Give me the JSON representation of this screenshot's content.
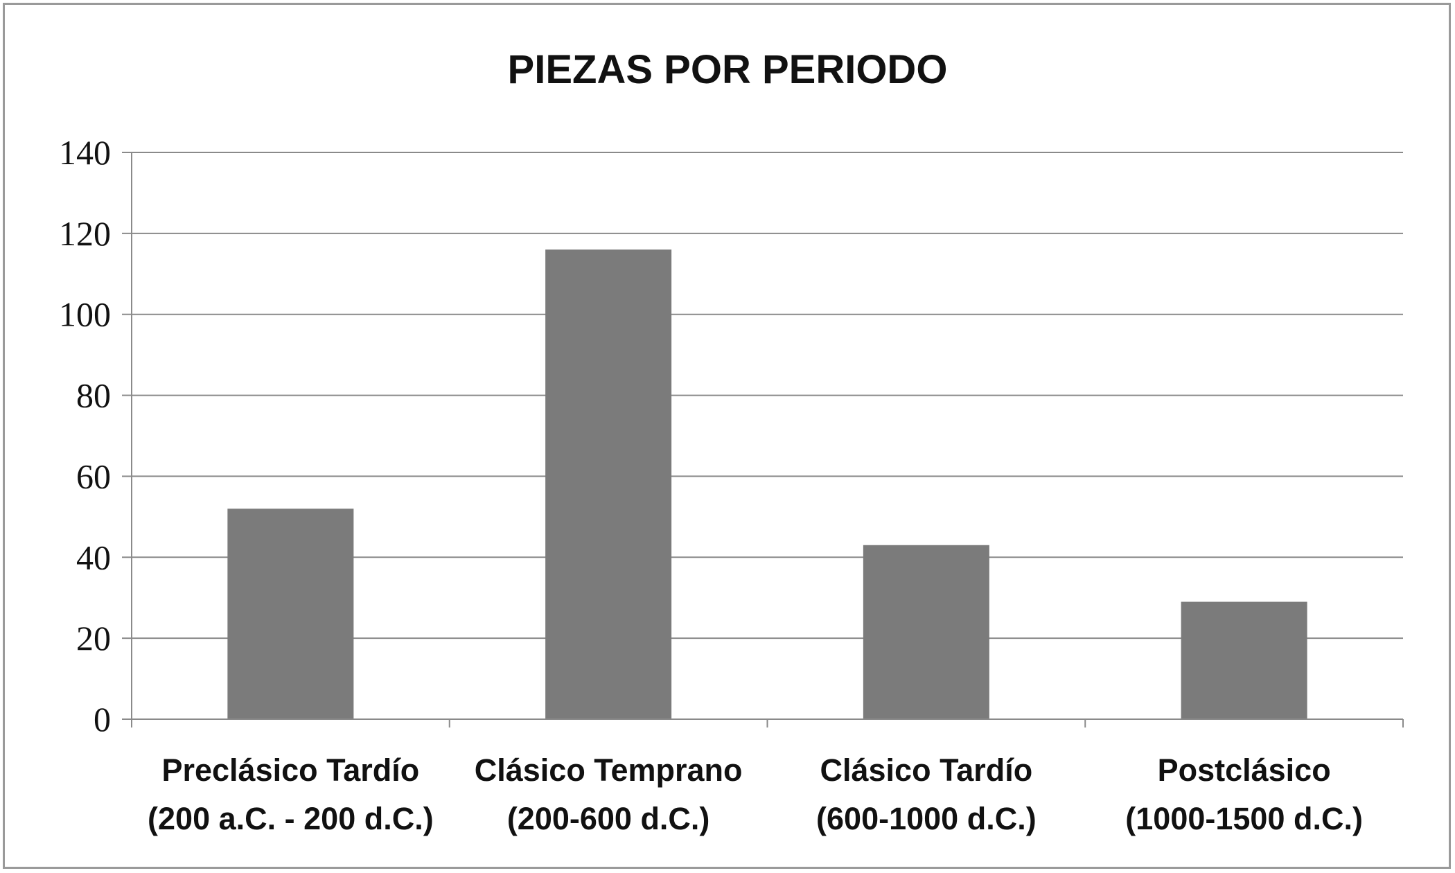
{
  "chart_data": {
    "type": "bar",
    "title": "PIEZAS POR PERIODO",
    "xlabel": "",
    "ylabel": "",
    "categories": [
      [
        "Preclásico Tardío",
        "(200 a.C. - 200 d.C.)"
      ],
      [
        "Clásico Temprano",
        "(200-600 d.C.)"
      ],
      [
        "Clásico Tardío",
        "(600-1000 d.C.)"
      ],
      [
        "Postclásico",
        "(1000-1500 d.C.)"
      ]
    ],
    "values": [
      52,
      116,
      43,
      29
    ],
    "ylim": [
      0,
      140
    ],
    "yticks": [
      0,
      20,
      40,
      60,
      80,
      100,
      120,
      140
    ],
    "grid": true,
    "legend": "none",
    "colors": {
      "bar": "#7b7b7b",
      "grid": "#8a8a8a",
      "axis": "#8a8a8a",
      "frame": "#9a9a9a"
    }
  }
}
